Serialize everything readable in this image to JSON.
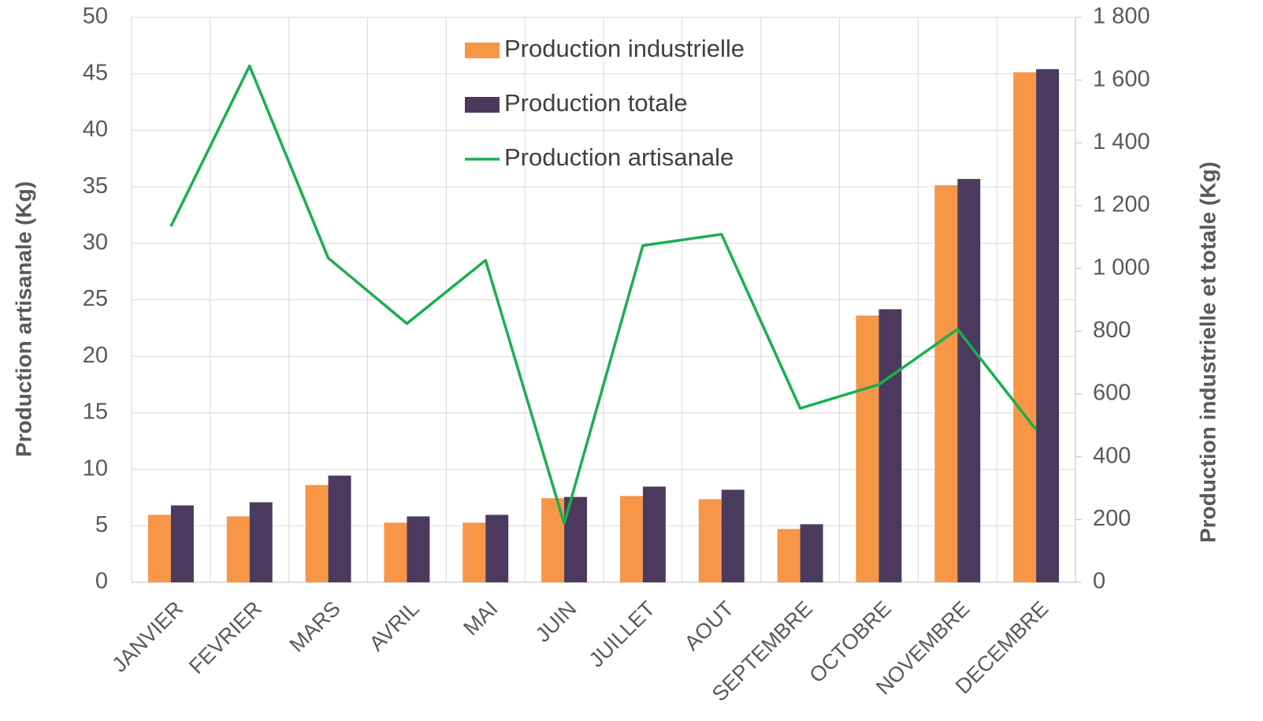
{
  "chart_data": {
    "type": "bar_line",
    "categories": [
      "JANVIER",
      "FEVRIER",
      "MARS",
      "AVRIL",
      "MAI",
      "JUIN",
      "JUILLET",
      "AOUT",
      "SEPTEMBRE",
      "OCTOBRE",
      "NOVEMBRE",
      "DECEMBRE"
    ],
    "series": [
      {
        "name": "Production industrielle",
        "type": "bar",
        "axis": "y2",
        "color": "#f79646",
        "values": [
          215,
          210,
          310,
          190,
          190,
          268,
          275,
          265,
          170,
          850,
          1265,
          1625
        ]
      },
      {
        "name": "Production totale",
        "type": "bar",
        "axis": "y2",
        "color": "#4b3a5e",
        "values": [
          245,
          255,
          340,
          210,
          215,
          272,
          305,
          295,
          185,
          870,
          1285,
          1635
        ]
      },
      {
        "name": "Production artisanale",
        "type": "line",
        "axis": "y",
        "color": "#1aaf4f",
        "values": [
          31.5,
          45.7,
          28.7,
          22.9,
          28.5,
          5.2,
          29.8,
          30.8,
          15.4,
          17.5,
          22.4,
          13.5
        ]
      }
    ],
    "ylabel": "Production artisanale (Kg)",
    "y2label": "Production industrielle et totale (Kg)",
    "ylim": [
      0,
      50
    ],
    "yticks": [
      0,
      5,
      10,
      15,
      20,
      25,
      30,
      35,
      40,
      45,
      50
    ],
    "y2lim": [
      0,
      1800
    ],
    "y2ticks": [
      0,
      200,
      400,
      600,
      800,
      {
        "value": 1000,
        "label": "1 000"
      },
      {
        "value": 1200,
        "label": "1 200"
      },
      {
        "value": 1400,
        "label": "1 400"
      },
      {
        "value": 1600,
        "label": "1 600"
      },
      {
        "value": 1800,
        "label": "1 800"
      }
    ],
    "grid": true,
    "legend": "top"
  }
}
